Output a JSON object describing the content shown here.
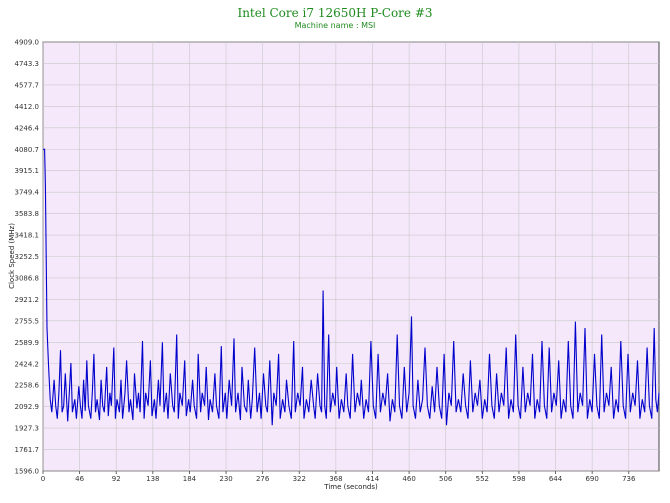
{
  "chart_data": {
    "type": "line",
    "title": "Intel Core i7 12650H P-Core #3",
    "subtitle": "Machine name : MSI",
    "xlabel": "Time (seconds)",
    "ylabel": "Clock Speed (MHz)",
    "xlim": [
      0,
      774
    ],
    "ylim": [
      1596.0,
      4909.0
    ],
    "x_ticks": [
      0,
      46,
      92,
      138,
      184,
      230,
      276,
      322,
      368,
      414,
      460,
      506,
      552,
      598,
      644,
      690,
      736
    ],
    "y_ticks": [
      "1596.0",
      "1761.7",
      "1927.3",
      "2092.9",
      "2258.6",
      "2424.2",
      "2589.9",
      "2755.5",
      "2921.2",
      "3086.8",
      "3252.5",
      "3418.1",
      "3583.8",
      "3749.4",
      "3915.1",
      "4080.7",
      "4246.4",
      "4412.0",
      "4577.7",
      "4743.3",
      "4909.0"
    ],
    "grid": true,
    "series": [
      {
        "color": "#0000cc",
        "points": [
          [
            0,
            4080
          ],
          [
            2,
            4080
          ],
          [
            3,
            3800
          ],
          [
            5,
            2700
          ],
          [
            7,
            2400
          ],
          [
            9,
            2150
          ],
          [
            11,
            2050
          ],
          [
            14,
            2300
          ],
          [
            16,
            2100
          ],
          [
            18,
            2000
          ],
          [
            20,
            2200
          ],
          [
            22,
            2530
          ],
          [
            24,
            2050
          ],
          [
            26,
            2100
          ],
          [
            28,
            2350
          ],
          [
            31,
            1980
          ],
          [
            33,
            2200
          ],
          [
            35,
            2430
          ],
          [
            37,
            2050
          ],
          [
            40,
            2150
          ],
          [
            42,
            2000
          ],
          [
            45,
            2250
          ],
          [
            47,
            2100
          ],
          [
            49,
            2000
          ],
          [
            51,
            2300
          ],
          [
            53,
            2060
          ],
          [
            55,
            2450
          ],
          [
            57,
            2100
          ],
          [
            60,
            2000
          ],
          [
            62,
            2200
          ],
          [
            64,
            2500
          ],
          [
            66,
            2050
          ],
          [
            68,
            2150
          ],
          [
            71,
            1990
          ],
          [
            73,
            2300
          ],
          [
            75,
            2100
          ],
          [
            77,
            2050
          ],
          [
            80,
            2400
          ],
          [
            82,
            2020
          ],
          [
            84,
            2200
          ],
          [
            86,
            2100
          ],
          [
            89,
            2550
          ],
          [
            91,
            2000
          ],
          [
            93,
            2150
          ],
          [
            96,
            2050
          ],
          [
            98,
            2300
          ],
          [
            100,
            2000
          ],
          [
            103,
            2200
          ],
          [
            105,
            2450
          ],
          [
            108,
            2050
          ],
          [
            110,
            2150
          ],
          [
            113,
            1990
          ],
          [
            115,
            2350
          ],
          [
            118,
            2080
          ],
          [
            120,
            2200
          ],
          [
            122,
            2050
          ],
          [
            125,
            2600
          ],
          [
            127,
            2000
          ],
          [
            129,
            2200
          ],
          [
            132,
            2100
          ],
          [
            135,
            2450
          ],
          [
            137,
            2020
          ],
          [
            140,
            2150
          ],
          [
            142,
            2000
          ],
          [
            145,
            2300
          ],
          [
            147,
            2100
          ],
          [
            150,
            2590
          ],
          [
            152,
            2050
          ],
          [
            155,
            2200
          ],
          [
            157,
            2000
          ],
          [
            160,
            2350
          ],
          [
            163,
            2100
          ],
          [
            165,
            2050
          ],
          [
            168,
            2650
          ],
          [
            170,
            2000
          ],
          [
            172,
            2200
          ],
          [
            175,
            2100
          ],
          [
            178,
            2450
          ],
          [
            180,
            2020
          ],
          [
            183,
            2150
          ],
          [
            185,
            2050
          ],
          [
            188,
            2300
          ],
          [
            190,
            2100
          ],
          [
            193,
            2000
          ],
          [
            195,
            2500
          ],
          [
            198,
            2050
          ],
          [
            200,
            2200
          ],
          [
            203,
            2100
          ],
          [
            205,
            2400
          ],
          [
            208,
            1990
          ],
          [
            210,
            2150
          ],
          [
            213,
            2050
          ],
          [
            216,
            2350
          ],
          [
            218,
            2100
          ],
          [
            221,
            2000
          ],
          [
            224,
            2560
          ],
          [
            226,
            2050
          ],
          [
            229,
            2200
          ],
          [
            231,
            2000
          ],
          [
            234,
            2300
          ],
          [
            237,
            2100
          ],
          [
            240,
            2620
          ],
          [
            242,
            2050
          ],
          [
            245,
            2200
          ],
          [
            248,
            1990
          ],
          [
            250,
            2400
          ],
          [
            253,
            2100
          ],
          [
            256,
            2050
          ],
          [
            258,
            2300
          ],
          [
            261,
            2000
          ],
          [
            263,
            2150
          ],
          [
            266,
            2550
          ],
          [
            269,
            2050
          ],
          [
            272,
            2200
          ],
          [
            274,
            2000
          ],
          [
            277,
            2350
          ],
          [
            280,
            2100
          ],
          [
            282,
            2050
          ],
          [
            285,
            2450
          ],
          [
            288,
            1950
          ],
          [
            290,
            2200
          ],
          [
            293,
            2100
          ],
          [
            296,
            2500
          ],
          [
            298,
            2000
          ],
          [
            301,
            2150
          ],
          [
            304,
            2050
          ],
          [
            306,
            2300
          ],
          [
            309,
            2100
          ],
          [
            312,
            2000
          ],
          [
            315,
            2600
          ],
          [
            317,
            2050
          ],
          [
            320,
            2200
          ],
          [
            323,
            2100
          ],
          [
            326,
            2400
          ],
          [
            328,
            2000
          ],
          [
            331,
            2150
          ],
          [
            334,
            2050
          ],
          [
            337,
            2300
          ],
          [
            340,
            2100
          ],
          [
            342,
            2000
          ],
          [
            345,
            2350
          ],
          [
            348,
            2100
          ],
          [
            350,
            2050
          ],
          [
            352,
            2990
          ],
          [
            354,
            2100
          ],
          [
            356,
            2000
          ],
          [
            359,
            2650
          ],
          [
            361,
            2050
          ],
          [
            364,
            2200
          ],
          [
            367,
            2100
          ],
          [
            369,
            2400
          ],
          [
            372,
            2000
          ],
          [
            375,
            2150
          ],
          [
            378,
            2050
          ],
          [
            381,
            2350
          ],
          [
            383,
            2100
          ],
          [
            386,
            2000
          ],
          [
            389,
            2500
          ],
          [
            392,
            2050
          ],
          [
            395,
            2200
          ],
          [
            398,
            2100
          ],
          [
            400,
            2300
          ],
          [
            403,
            2000
          ],
          [
            406,
            2150
          ],
          [
            409,
            2050
          ],
          [
            412,
            2600
          ],
          [
            415,
            2100
          ],
          [
            418,
            2000
          ],
          [
            421,
            2500
          ],
          [
            424,
            2050
          ],
          [
            427,
            2200
          ],
          [
            430,
            2100
          ],
          [
            433,
            2350
          ],
          [
            436,
            1980
          ],
          [
            439,
            2150
          ],
          [
            442,
            2050
          ],
          [
            445,
            2650
          ],
          [
            448,
            2100
          ],
          [
            451,
            2000
          ],
          [
            454,
            2400
          ],
          [
            457,
            2050
          ],
          [
            460,
            2200
          ],
          [
            463,
            2790
          ],
          [
            465,
            2100
          ],
          [
            468,
            2000
          ],
          [
            471,
            2300
          ],
          [
            474,
            2050
          ],
          [
            477,
            2150
          ],
          [
            480,
            2550
          ],
          [
            483,
            2100
          ],
          [
            486,
            2000
          ],
          [
            489,
            2250
          ],
          [
            492,
            2050
          ],
          [
            495,
            2400
          ],
          [
            498,
            2100
          ],
          [
            501,
            2000
          ],
          [
            504,
            2500
          ],
          [
            507,
            1950
          ],
          [
            510,
            2200
          ],
          [
            513,
            2100
          ],
          [
            516,
            2600
          ],
          [
            519,
            2050
          ],
          [
            522,
            2150
          ],
          [
            525,
            2050
          ],
          [
            528,
            2350
          ],
          [
            531,
            2100
          ],
          [
            534,
            2000
          ],
          [
            537,
            2450
          ],
          [
            540,
            2050
          ],
          [
            543,
            2200
          ],
          [
            546,
            2100
          ],
          [
            549,
            2300
          ],
          [
            552,
            2000
          ],
          [
            555,
            2150
          ],
          [
            558,
            2050
          ],
          [
            561,
            2500
          ],
          [
            564,
            2100
          ],
          [
            567,
            2000
          ],
          [
            570,
            2350
          ],
          [
            573,
            2050
          ],
          [
            576,
            2200
          ],
          [
            579,
            2100
          ],
          [
            582,
            2550
          ],
          [
            585,
            2000
          ],
          [
            588,
            2150
          ],
          [
            591,
            2050
          ],
          [
            594,
            2650
          ],
          [
            597,
            2100
          ],
          [
            600,
            2000
          ],
          [
            603,
            2400
          ],
          [
            606,
            2050
          ],
          [
            609,
            2200
          ],
          [
            612,
            2100
          ],
          [
            615,
            2500
          ],
          [
            618,
            2000
          ],
          [
            621,
            2150
          ],
          [
            624,
            2050
          ],
          [
            627,
            2600
          ],
          [
            630,
            2100
          ],
          [
            633,
            2000
          ],
          [
            636,
            2550
          ],
          [
            639,
            2050
          ],
          [
            642,
            2200
          ],
          [
            645,
            2100
          ],
          [
            648,
            2450
          ],
          [
            651,
            2000
          ],
          [
            654,
            2150
          ],
          [
            657,
            2050
          ],
          [
            660,
            2600
          ],
          [
            663,
            2100
          ],
          [
            666,
            2000
          ],
          [
            669,
            2750
          ],
          [
            672,
            2050
          ],
          [
            675,
            2200
          ],
          [
            678,
            2100
          ],
          [
            681,
            2700
          ],
          [
            684,
            2000
          ],
          [
            687,
            2150
          ],
          [
            690,
            2050
          ],
          [
            693,
            2500
          ],
          [
            696,
            2100
          ],
          [
            699,
            2000
          ],
          [
            702,
            2650
          ],
          [
            705,
            2050
          ],
          [
            708,
            2200
          ],
          [
            711,
            2100
          ],
          [
            714,
            2400
          ],
          [
            717,
            2000
          ],
          [
            720,
            2150
          ],
          [
            723,
            2050
          ],
          [
            726,
            2600
          ],
          [
            729,
            2100
          ],
          [
            732,
            2000
          ],
          [
            735,
            2500
          ],
          [
            738,
            2050
          ],
          [
            741,
            2200
          ],
          [
            744,
            2100
          ],
          [
            747,
            2450
          ],
          [
            750,
            2000
          ],
          [
            753,
            2150
          ],
          [
            756,
            2050
          ],
          [
            759,
            2550
          ],
          [
            762,
            2100
          ],
          [
            765,
            2000
          ],
          [
            768,
            2700
          ],
          [
            770,
            2150
          ],
          [
            772,
            2050
          ],
          [
            774,
            2200
          ]
        ]
      }
    ]
  }
}
